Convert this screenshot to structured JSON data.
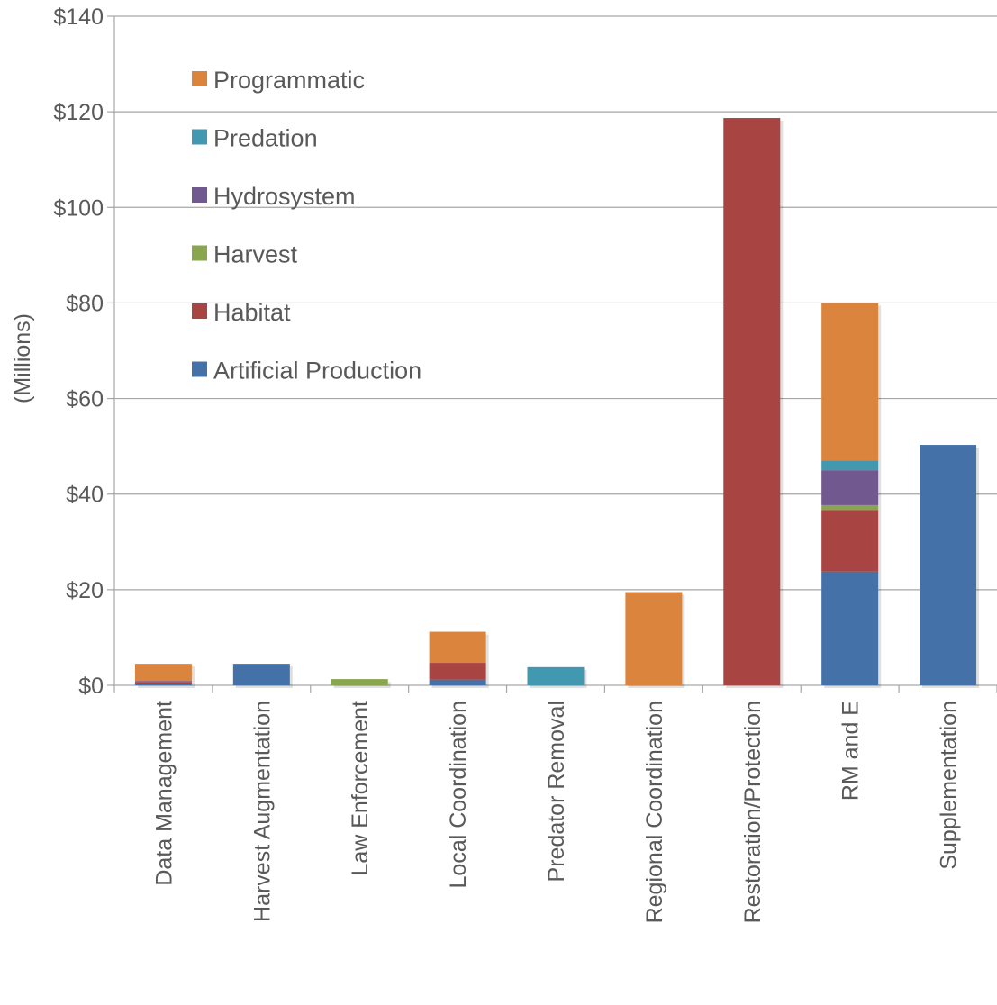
{
  "chart_data": {
    "type": "bar",
    "stacked": true,
    "title": "",
    "xlabel": "",
    "ylabel": "(Millions)",
    "ylim": [
      0,
      140
    ],
    "y_ticks": [
      0,
      20,
      40,
      60,
      80,
      100,
      120,
      140
    ],
    "y_tick_labels": [
      "$0",
      "$20",
      "$40",
      "$60",
      "$80",
      "$100",
      "$120",
      "$140"
    ],
    "grid": true,
    "legend_position": "top-left (inside plot)",
    "categories": [
      "Data Management",
      "Harvest Augmentation",
      "Law Enforcement",
      "Local Coordination",
      "Predator Removal",
      "Regional Coordination",
      "Restoration/Protection",
      "RM and E",
      "Supplementation"
    ],
    "series": [
      {
        "name": "Artificial Production",
        "color": "#4472A8",
        "values": [
          0.3,
          4.5,
          0,
          1.2,
          0,
          0,
          0,
          23.8,
          50.3
        ]
      },
      {
        "name": "Habitat",
        "color": "#A84442",
        "values": [
          0.3,
          0,
          0,
          3.5,
          0,
          0,
          118.7,
          12.9,
          0
        ]
      },
      {
        "name": "Harvest",
        "color": "#89A54E",
        "values": [
          0,
          0,
          1.3,
          0,
          0,
          0,
          0,
          1.0,
          0
        ]
      },
      {
        "name": "Hydrosystem",
        "color": "#71588F",
        "values": [
          0.3,
          0,
          0,
          0,
          0,
          0,
          0,
          7.3,
          0
        ]
      },
      {
        "name": "Predation",
        "color": "#4298AF",
        "values": [
          0,
          0,
          0,
          0,
          3.8,
          0,
          0,
          2.0,
          0
        ]
      },
      {
        "name": "Programmatic",
        "color": "#DB843D",
        "values": [
          3.6,
          0,
          0,
          6.5,
          0,
          19.5,
          0,
          33.0,
          0
        ]
      }
    ],
    "legend_order": [
      "Programmatic",
      "Predation",
      "Hydrosystem",
      "Harvest",
      "Habitat",
      "Artificial Production"
    ]
  }
}
